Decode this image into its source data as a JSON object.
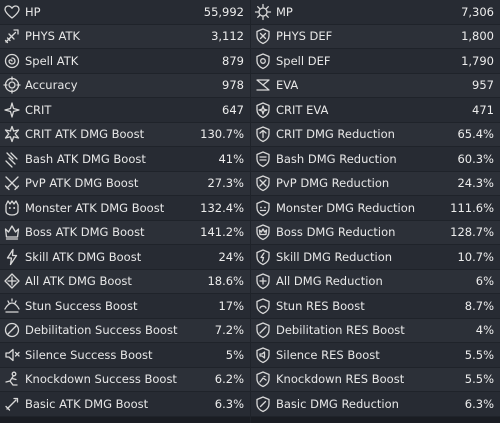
{
  "left": [
    {
      "icon": "heart-icon",
      "label": "HP",
      "value": "55,992"
    },
    {
      "icon": "sword-icon",
      "label": "PHYS ATK",
      "value": "3,112"
    },
    {
      "icon": "spiral-icon",
      "label": "Spell ATK",
      "value": "879"
    },
    {
      "icon": "target-icon",
      "label": "Accuracy",
      "value": "978"
    },
    {
      "icon": "sparkle-icon",
      "label": "CRIT",
      "value": "647"
    },
    {
      "icon": "crit-burst-icon",
      "label": "CRIT ATK DMG Boost",
      "value": "130.7%"
    },
    {
      "icon": "bash-icon",
      "label": "Bash ATK DMG Boost",
      "value": "41%"
    },
    {
      "icon": "pvp-swords-icon",
      "label": "PvP ATK DMG Boost",
      "value": "27.3%"
    },
    {
      "icon": "monster-icon",
      "label": "Monster ATK DMG Boost",
      "value": "132.4%"
    },
    {
      "icon": "boss-icon",
      "label": "Boss ATK DMG Boost",
      "value": "141.2%"
    },
    {
      "icon": "skill-icon",
      "label": "Skill ATK DMG Boost",
      "value": "24%"
    },
    {
      "icon": "all-atk-icon",
      "label": "All ATK DMG Boost",
      "value": "18.6%"
    },
    {
      "icon": "stun-icon",
      "label": "Stun Success Boost",
      "value": "17%"
    },
    {
      "icon": "debilitation-icon",
      "label": "Debilitation Success Boost",
      "value": "7.2%"
    },
    {
      "icon": "silence-icon",
      "label": "Silence Success Boost",
      "value": "5%"
    },
    {
      "icon": "knockdown-icon",
      "label": "Knockdown Success Boost",
      "value": "6.2%"
    },
    {
      "icon": "basic-atk-icon",
      "label": "Basic ATK DMG Boost",
      "value": "6.3%"
    }
  ],
  "right": [
    {
      "icon": "mana-gear-icon",
      "label": "MP",
      "value": "7,306"
    },
    {
      "icon": "shield-icon",
      "label": "PHYS DEF",
      "value": "1,800"
    },
    {
      "icon": "spell-shield-icon",
      "label": "Spell DEF",
      "value": "1,790"
    },
    {
      "icon": "evasion-icon",
      "label": "EVA",
      "value": "957"
    },
    {
      "icon": "crit-eva-icon",
      "label": "CRIT EVA",
      "value": "471"
    },
    {
      "icon": "crit-dmg-reduction-icon",
      "label": "CRIT DMG Reduction",
      "value": "65.4%"
    },
    {
      "icon": "bash-dmg-reduction-icon",
      "label": "Bash DMG Reduction",
      "value": "60.3%"
    },
    {
      "icon": "pvp-dmg-reduction-icon",
      "label": "PvP DMG Reduction",
      "value": "24.3%"
    },
    {
      "icon": "monster-dmg-reduction-icon",
      "label": "Monster DMG Reduction",
      "value": "111.6%"
    },
    {
      "icon": "boss-dmg-reduction-icon",
      "label": "Boss DMG Reduction",
      "value": "128.7%"
    },
    {
      "icon": "skill-dmg-reduction-icon",
      "label": "Skill DMG Reduction",
      "value": "10.7%"
    },
    {
      "icon": "all-dmg-reduction-icon",
      "label": "All DMG Reduction",
      "value": "6%"
    },
    {
      "icon": "stun-res-icon",
      "label": "Stun RES Boost",
      "value": "8.7%"
    },
    {
      "icon": "debilitation-res-icon",
      "label": "Debilitation RES Boost",
      "value": "4%"
    },
    {
      "icon": "silence-res-icon",
      "label": "Silence RES Boost",
      "value": "5.5%"
    },
    {
      "icon": "knockdown-res-icon",
      "label": "Knockdown RES Boost",
      "value": "5.5%"
    },
    {
      "icon": "basic-dmg-reduction-icon",
      "label": "Basic DMG Reduction",
      "value": "6.3%"
    }
  ]
}
